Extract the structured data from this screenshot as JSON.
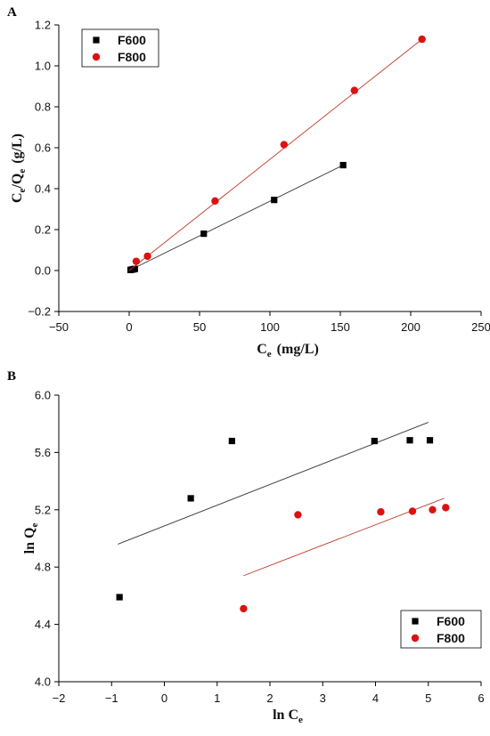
{
  "colors": {
    "F600": "#000000",
    "F800": "#dd1111",
    "fit600": "#333333",
    "fit800": "#c0392b"
  },
  "chart_data": [
    {
      "panel": "A",
      "type": "scatter",
      "xlabel": {
        "main": "C",
        "sub": "e",
        "rest": "(mg/L)"
      },
      "ylabel": {
        "parts": [
          {
            "t": "C",
            "sub": false
          },
          {
            "t": "e",
            "sub": true
          },
          {
            "t": "/Q",
            "sub": false
          },
          {
            "t": "e",
            "sub": true
          },
          {
            "t": "(g/L)",
            "sub": false
          }
        ]
      },
      "xlim": [
        -50,
        250
      ],
      "ylim": [
        -0.2,
        1.2
      ],
      "xticks": [
        -50,
        0,
        50,
        100,
        150,
        200,
        250
      ],
      "yticks": [
        -0.2,
        0.0,
        0.2,
        0.4,
        0.6,
        0.8,
        1.0,
        1.2
      ],
      "ytick_labels": [
        "−0.2",
        "0.0",
        "0.2",
        "0.4",
        "0.6",
        "0.8",
        "1.0",
        "1.2"
      ],
      "xtick_labels": [
        "−50",
        "0",
        "50",
        "100",
        "150",
        "200",
        "250"
      ],
      "legend_position": "top-left",
      "series": [
        {
          "name": "F600",
          "marker": "square",
          "x": [
            1,
            2,
            3,
            4,
            53,
            103,
            152
          ],
          "y": [
            0.003,
            0.005,
            0.006,
            0.008,
            0.18,
            0.345,
            0.515
          ],
          "fit": {
            "x": [
              0,
              152
            ],
            "y": [
              0.0,
              0.515
            ]
          }
        },
        {
          "name": "F800",
          "marker": "circle",
          "x": [
            5,
            13,
            61,
            110,
            160,
            208
          ],
          "y": [
            0.045,
            0.07,
            0.34,
            0.615,
            0.88,
            1.13
          ],
          "fit": {
            "x": [
              0,
              208
            ],
            "y": [
              0.0,
              1.13
            ]
          }
        }
      ]
    },
    {
      "panel": "B",
      "type": "scatter",
      "xlabel": {
        "main": "ln C",
        "sub": "e",
        "rest": ""
      },
      "ylabel": {
        "parts": [
          {
            "t": "ln Q",
            "sub": false
          },
          {
            "t": "e",
            "sub": true
          }
        ]
      },
      "xlim": [
        -2,
        6
      ],
      "ylim": [
        4.0,
        6.0
      ],
      "xticks": [
        -2,
        -1,
        0,
        1,
        2,
        3,
        4,
        5,
        6
      ],
      "yticks": [
        4.0,
        4.4,
        4.8,
        5.2,
        5.6,
        6.0
      ],
      "xtick_labels": [
        "−2",
        "−1",
        "0",
        "1",
        "2",
        "3",
        "4",
        "5",
        "6"
      ],
      "ytick_labels": [
        "4.0",
        "4.4",
        "4.8",
        "5.2",
        "5.6",
        "6.0"
      ],
      "legend_position": "bottom-right",
      "series": [
        {
          "name": "F600",
          "marker": "square",
          "x": [
            -0.85,
            0.5,
            1.28,
            3.98,
            4.65,
            5.03
          ],
          "y": [
            4.59,
            5.28,
            5.68,
            5.68,
            5.685,
            5.685
          ],
          "fit": {
            "x": [
              -0.88,
              5.0
            ],
            "y": [
              4.96,
              5.81
            ]
          }
        },
        {
          "name": "F800",
          "marker": "circle",
          "x": [
            1.5,
            2.53,
            4.1,
            4.7,
            5.08,
            5.33
          ],
          "y": [
            4.51,
            5.165,
            5.185,
            5.19,
            5.2,
            5.215
          ],
          "fit": {
            "x": [
              1.5,
              5.3
            ],
            "y": [
              4.74,
              5.28
            ]
          }
        }
      ]
    }
  ]
}
